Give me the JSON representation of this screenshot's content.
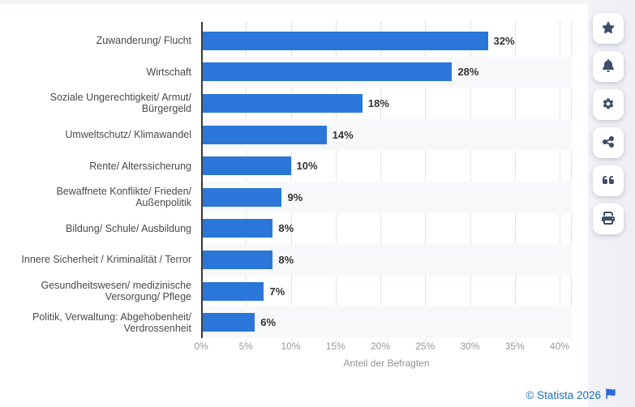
{
  "chart_data": {
    "type": "bar",
    "orientation": "horizontal",
    "categories": [
      "Zuwanderung/ Flucht",
      "Wirtschaft",
      "Soziale Ungerechtigkeit/ Armut/ Bürgergeld",
      "Umweltschutz/ Klimawandel",
      "Rente/ Alterssicherung",
      "Bewaffnete Konflikte/ Frieden/ Außenpolitik",
      "Bildung/ Schule/ Ausbildung",
      "Innere Sicherheit / Kriminalität / Terror",
      "Gesundheitswesen/ medizinische Versorgung/ Pflege",
      "Politik, Verwaltung: Abgehobenheit/ Verdrossenheit"
    ],
    "values": [
      32,
      28,
      18,
      14,
      10,
      9,
      8,
      8,
      7,
      6
    ],
    "value_labels": [
      "32%",
      "28%",
      "18%",
      "14%",
      "10%",
      "9%",
      "8%",
      "8%",
      "7%",
      "6%"
    ],
    "x_ticks": [
      "0%",
      "5%",
      "10%",
      "15%",
      "20%",
      "25%",
      "30%",
      "35%",
      "40%"
    ],
    "x_tick_values": [
      0,
      5,
      10,
      15,
      20,
      25,
      30,
      35,
      40
    ],
    "xlim": [
      0,
      41.3
    ],
    "xlabel": "Anteil der Befragten",
    "grid": "dotted-vertical",
    "legend": "none",
    "bar_color": "#2a76d9",
    "band_color": "#f7f8fa"
  },
  "sidebar": {
    "buttons": [
      {
        "id": "favorite",
        "icon": "star-icon"
      },
      {
        "id": "notification",
        "icon": "bell-icon"
      },
      {
        "id": "settings",
        "icon": "gear-icon"
      },
      {
        "id": "share",
        "icon": "share-icon"
      },
      {
        "id": "cite",
        "icon": "quote-icon"
      },
      {
        "id": "print",
        "icon": "printer-icon"
      }
    ]
  },
  "footer": {
    "copyright": "© Statista 2026",
    "flag_icon": "flag-icon"
  },
  "colors": {
    "bar": "#2a76d9",
    "band": "#f7f8fa",
    "axis": "#3b3b3b",
    "grid": "#c8c8c8",
    "tick_text": "#999999",
    "category_text": "#4a4a4a",
    "value_text": "#333333",
    "rail_bg": "#eff1f4",
    "icon": "#3d4d6b",
    "statista_blue": "#1a70ba"
  }
}
